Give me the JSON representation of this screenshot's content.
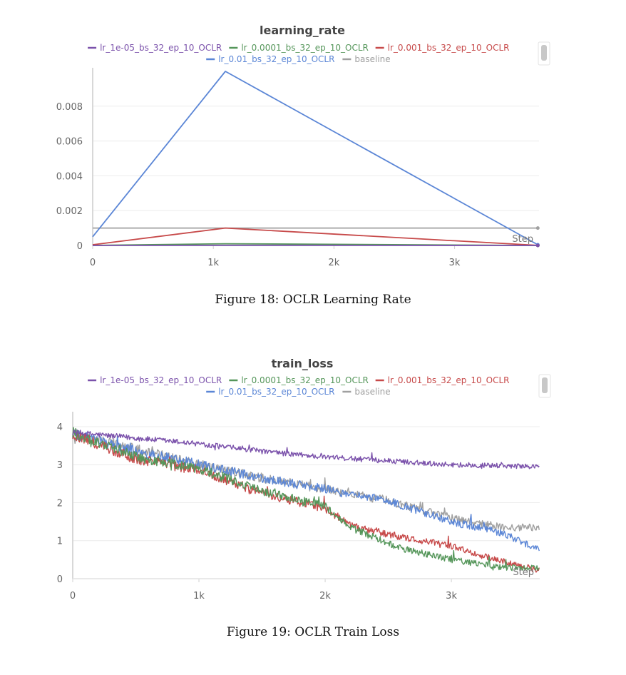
{
  "chart_data": [
    {
      "type": "line",
      "title": "learning_rate",
      "xlabel": "Step",
      "ylabel": "",
      "xlim": [
        0,
        3700
      ],
      "ylim": [
        0,
        0.01
      ],
      "x_ticks": [
        0,
        1000,
        2000,
        3000
      ],
      "x_tick_labels": [
        "0",
        "1k",
        "2k",
        "3k"
      ],
      "y_ticks": [
        0,
        0.002,
        0.004,
        0.006,
        0.008
      ],
      "y_tick_labels": [
        "0",
        "0.002",
        "0.004",
        "0.006",
        "0.008"
      ],
      "grid": true,
      "legend_position": "top-center",
      "series": [
        {
          "name": "lr_1e-05_bs_32_ep_10_OCLR",
          "color": "#7b52ab",
          "x": [
            0,
            1100,
            3690
          ],
          "y": [
            4e-07,
            1e-05,
            4e-08
          ]
        },
        {
          "name": "lr_0.0001_bs_32_ep_10_OCLR",
          "color": "#55965a",
          "x": [
            0,
            1100,
            3690
          ],
          "y": [
            4e-06,
            0.0001,
            4e-07
          ]
        },
        {
          "name": "lr_0.001_bs_32_ep_10_OCLR",
          "color": "#c74a4a",
          "x": [
            0,
            1100,
            3690
          ],
          "y": [
            4e-05,
            0.001,
            4e-06
          ]
        },
        {
          "name": "lr_0.01_bs_32_ep_10_OCLR",
          "color": "#5b86d6",
          "x": [
            0,
            1100,
            3690
          ],
          "y": [
            0.0005,
            0.01,
            4e-05
          ]
        },
        {
          "name": "baseline",
          "color": "#a0a0a0",
          "x": [
            0,
            3690
          ],
          "y": [
            0.001,
            0.001
          ]
        }
      ]
    },
    {
      "type": "line",
      "title": "train_loss",
      "xlabel": "Step",
      "ylabel": "",
      "xlim": [
        0,
        3700
      ],
      "ylim": [
        0,
        4.3
      ],
      "x_ticks": [
        0,
        1000,
        2000,
        3000
      ],
      "x_tick_labels": [
        "0",
        "1k",
        "2k",
        "3k"
      ],
      "y_ticks": [
        0,
        1,
        2,
        3,
        4
      ],
      "y_tick_labels": [
        "0",
        "1",
        "2",
        "3",
        "4"
      ],
      "grid": true,
      "legend_position": "top-center",
      "series": [
        {
          "name": "lr_1e-05_bs_32_ep_10_OCLR",
          "color": "#7b52ab",
          "x": [
            0,
            500,
            1000,
            1500,
            2000,
            2500,
            3000,
            3700
          ],
          "y": [
            3.85,
            3.7,
            3.55,
            3.35,
            3.2,
            3.1,
            3.0,
            2.95
          ]
        },
        {
          "name": "lr_0.0001_bs_32_ep_10_OCLR",
          "color": "#55965a",
          "x": [
            0,
            500,
            1000,
            1500,
            2000,
            2200,
            2600,
            3000,
            3400,
            3700
          ],
          "y": [
            3.85,
            3.2,
            2.9,
            2.3,
            1.9,
            1.35,
            0.8,
            0.5,
            0.3,
            0.27
          ]
        },
        {
          "name": "lr_0.001_bs_32_ep_10_OCLR",
          "color": "#c74a4a",
          "x": [
            0,
            500,
            1000,
            1500,
            2000,
            2200,
            2600,
            3000,
            3400,
            3700
          ],
          "y": [
            3.8,
            3.15,
            2.85,
            2.25,
            1.85,
            1.4,
            1.1,
            0.85,
            0.45,
            0.22
          ]
        },
        {
          "name": "lr_0.01_bs_32_ep_10_OCLR",
          "color": "#5b86d6",
          "x": [
            0,
            500,
            1000,
            1500,
            2000,
            2500,
            3000,
            3400,
            3700
          ],
          "y": [
            3.8,
            3.35,
            3.0,
            2.65,
            2.35,
            2.05,
            1.5,
            1.2,
            0.75
          ]
        },
        {
          "name": "baseline",
          "color": "#a0a0a0",
          "x": [
            0,
            500,
            1000,
            1500,
            2000,
            2500,
            3000,
            3400,
            3700
          ],
          "y": [
            3.8,
            3.4,
            3.0,
            2.65,
            2.35,
            2.05,
            1.6,
            1.35,
            1.35
          ]
        }
      ]
    }
  ],
  "captions": {
    "fig1": "Figure 18: OCLR Learning Rate",
    "fig2": "Figure 19: OCLR Train Loss"
  }
}
